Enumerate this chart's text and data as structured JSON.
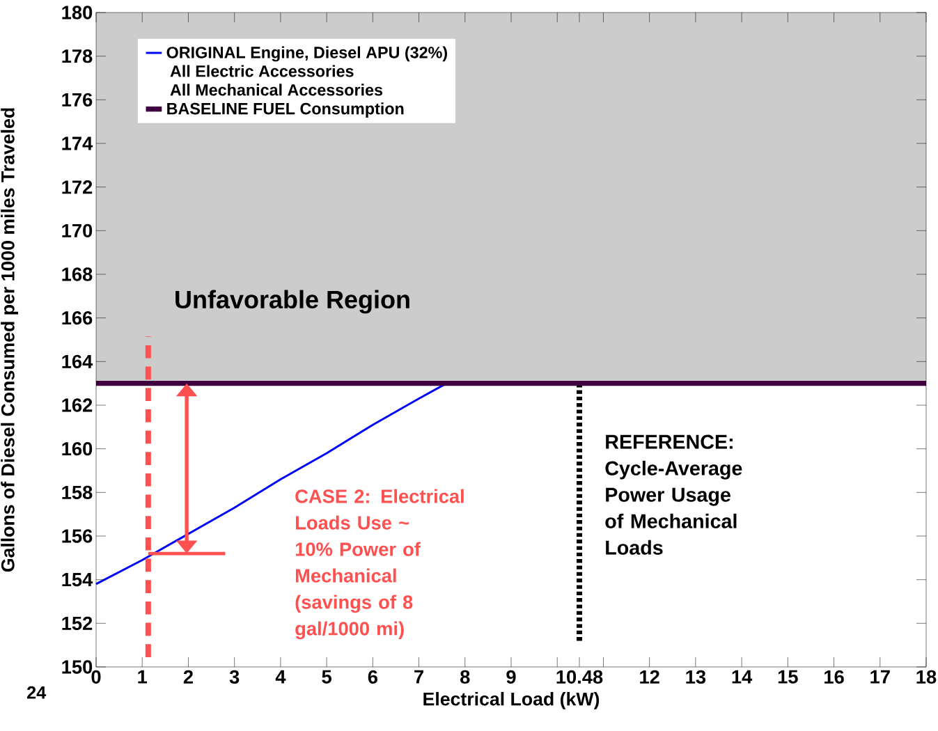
{
  "chart_data": {
    "type": "line",
    "xlabel": "Electrical Load (kW)",
    "ylabel": "Gallons of Diesel Consumed per 1000 miles Traveled",
    "series": [
      {
        "name": "ORIGINAL Engine, Diesel APU (32%)",
        "color": "#0000ff",
        "line_style": "solid",
        "x": [
          0,
          1,
          2,
          3,
          4,
          5,
          6,
          7,
          7.6
        ],
        "values": [
          153.8,
          154.9,
          156.1,
          157.3,
          158.6,
          159.8,
          161.1,
          162.3,
          163.0
        ]
      },
      {
        "name": "BASELINE FUEL Consumption",
        "color": "#3f003f",
        "line_style": "solid",
        "x": [
          0,
          18
        ],
        "values": [
          163,
          163
        ]
      },
      {
        "color": "#ff5050",
        "line_style": "solid",
        "x": [
          1.13,
          2.8
        ],
        "values": [
          155.2,
          155.2
        ]
      }
    ],
    "xlim": [
      0,
      18
    ],
    "ylim": [
      150,
      180
    ],
    "xticks": [
      0,
      1,
      2,
      3,
      4,
      5,
      6,
      7,
      8,
      9,
      {
        "value": 10,
        "label": null
      },
      10.48,
      {
        "value": 11,
        "label": null
      },
      12,
      13,
      14,
      15,
      16,
      17,
      18
    ],
    "yticks": [
      150,
      152,
      154,
      156,
      158,
      160,
      162,
      164,
      166,
      168,
      170,
      172,
      174,
      176,
      178,
      180
    ],
    "bands": [
      {
        "axis": "y",
        "from": 163,
        "to": 180,
        "label": "Unfavorable Region",
        "color": "#cccccc"
      }
    ],
    "ref_lines": [
      {
        "axis": "x",
        "value": 1.13,
        "label": null,
        "color": "#ff5050",
        "line_style": "dashed"
      },
      {
        "axis": "x",
        "value": 10.48,
        "label": "REFERENCE: Cycle-Average Power Usage of Mechanical Loads",
        "color": "#000000",
        "line_style": "dotted"
      }
    ],
    "annotations": [
      "All Electric Accessories",
      "All Mechanical Accessories",
      "CASE 2: Electrical Loads Use ~ 10% Power of Mechanical (savings of 8 gal/1000 mi)",
      "24"
    ],
    "legend": "top left",
    "marker": "none",
    "grid": false
  }
}
